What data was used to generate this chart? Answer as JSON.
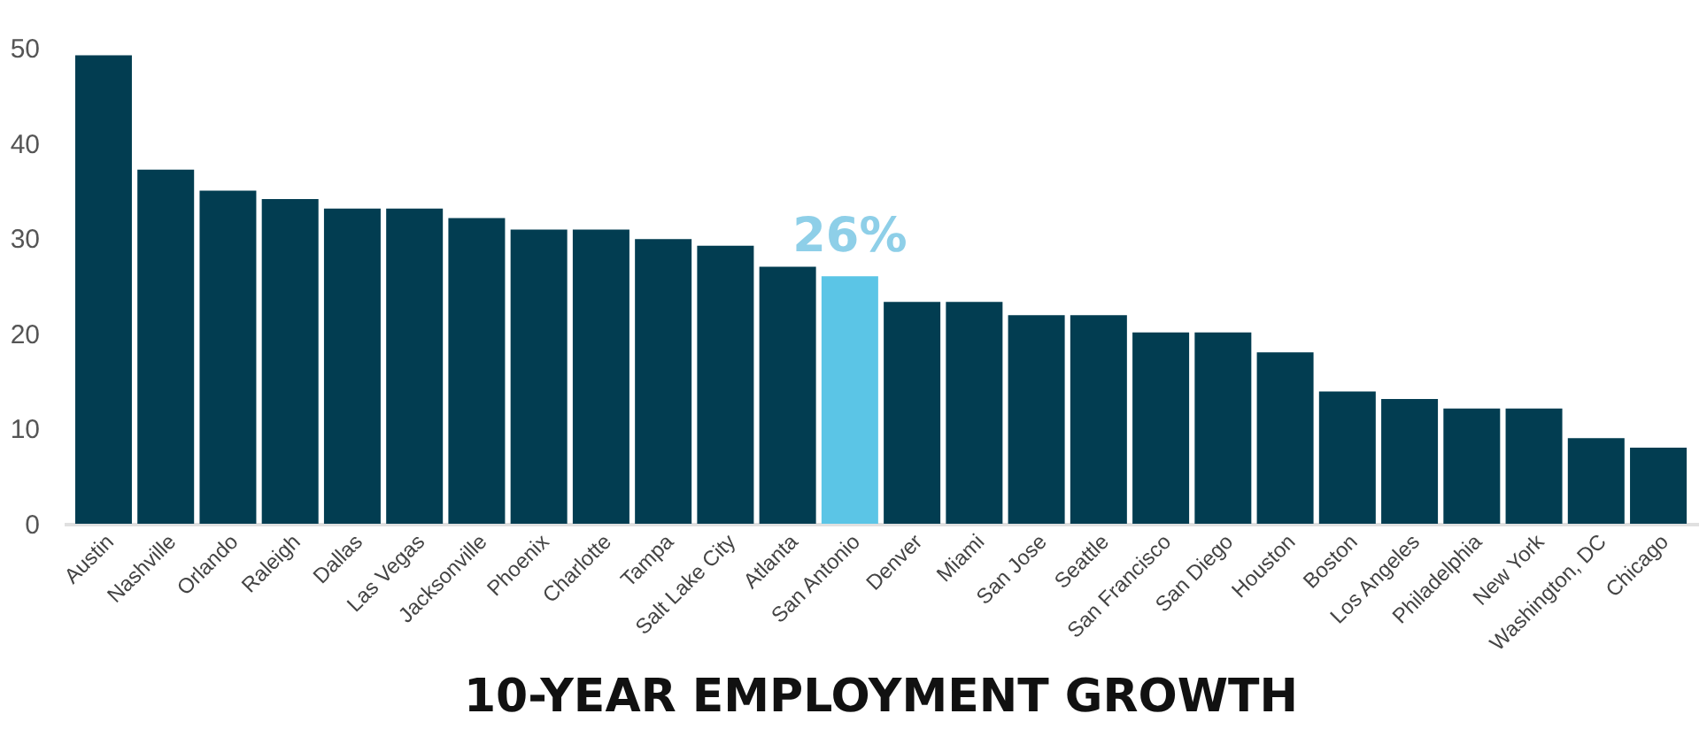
{
  "chart_data": {
    "type": "bar",
    "title": "10-YEAR EMPLOYMENT GROWTH",
    "categories": [
      "Austin",
      "Nashville",
      "Orlando",
      "Raleigh",
      "Dallas",
      "Las Vegas",
      "Jacksonville",
      "Phoenix",
      "Charlotte",
      "Tampa",
      "Salt Lake City",
      "Atlanta",
      "San Antonio",
      "Denver",
      "Miami",
      "San Jose",
      "Seattle",
      "San Francisco",
      "San Diego",
      "Houston",
      "Boston",
      "Los Angeles",
      "Philadelphia",
      "New York",
      "Washington, DC",
      "Chicago"
    ],
    "values": [
      49.2,
      37.2,
      35.0,
      34.1,
      33.1,
      33.1,
      32.1,
      30.9,
      30.9,
      29.9,
      29.2,
      27.0,
      26.0,
      23.3,
      23.3,
      21.9,
      21.9,
      20.1,
      20.1,
      18.0,
      13.9,
      13.1,
      12.1,
      12.1,
      9.0,
      8.0
    ],
    "colors": [
      "#023d51",
      "#023d51",
      "#023d51",
      "#023d51",
      "#023d51",
      "#023d51",
      "#023d51",
      "#023d51",
      "#023d51",
      "#023d51",
      "#023d51",
      "#023d51",
      "#5bc5e6",
      "#023d51",
      "#023d51",
      "#023d51",
      "#023d51",
      "#023d51",
      "#023d51",
      "#023d51",
      "#023d51",
      "#023d51",
      "#023d51",
      "#023d51",
      "#023d51",
      "#023d51"
    ],
    "value_labels": [
      null,
      null,
      null,
      null,
      null,
      null,
      null,
      null,
      null,
      null,
      null,
      null,
      "26%",
      null,
      null,
      null,
      null,
      null,
      null,
      null,
      null,
      null,
      null,
      null,
      null,
      null
    ],
    "ylim": [
      0,
      50
    ],
    "yticks": [
      0,
      10,
      20,
      30,
      40,
      50
    ],
    "grid": false
  }
}
